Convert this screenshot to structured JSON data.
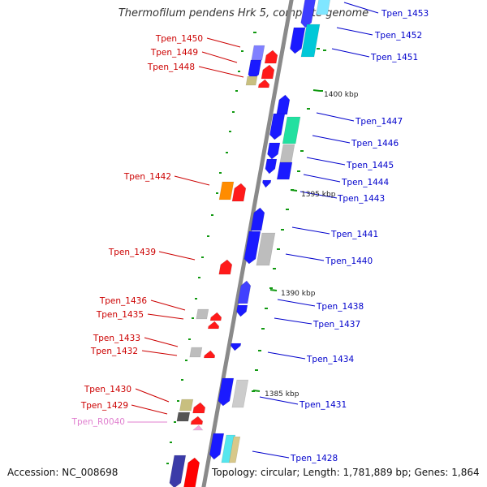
{
  "title": "Thermofilum pendens Hrk 5, complete genome",
  "footer": {
    "accession": "Accession: NC_008698",
    "summary": "Topology: circular; Length: 1,781,889 bp; Genes: 1,864"
  },
  "colors": {
    "forward_label": "#0000cc",
    "reverse_label": "#cc0000",
    "rna_label": "#e07fcf",
    "backbone": "#8a8a8a",
    "tick": "#119911"
  },
  "scale_labels": [
    "1400 kbp",
    "1395 kbp",
    "1390 kbp",
    "1385 kbp"
  ],
  "forward_genes": [
    "Tpen_1453",
    "Tpen_1452",
    "Tpen_1451",
    "Tpen_1447",
    "Tpen_1446",
    "Tpen_1445",
    "Tpen_1444",
    "Tpen_1443",
    "Tpen_1441",
    "Tpen_1440",
    "Tpen_1438",
    "Tpen_1437",
    "Tpen_1434",
    "Tpen_1431",
    "Tpen_1428"
  ],
  "reverse_genes": [
    "Tpen_1450",
    "Tpen_1449",
    "Tpen_1448",
    "Tpen_1442",
    "Tpen_1439",
    "Tpen_1436",
    "Tpen_1435",
    "Tpen_1433",
    "Tpen_1432",
    "Tpen_1430",
    "Tpen_1429"
  ],
  "rna_genes": [
    "Tpen_R0040"
  ]
}
